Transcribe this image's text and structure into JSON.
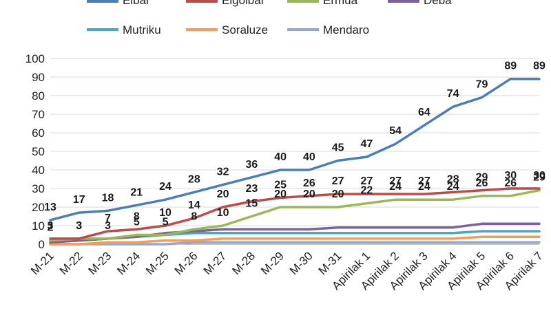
{
  "chart_data": {
    "type": "line",
    "title": "",
    "xlabel": "",
    "ylabel": "",
    "ylim": [
      0,
      100
    ],
    "yticks": [
      0,
      10,
      20,
      30,
      40,
      50,
      60,
      70,
      80,
      90,
      100
    ],
    "grid": true,
    "legend_position": "top",
    "categories": [
      "M-21",
      "M-22",
      "M-23",
      "M-24",
      "M-25",
      "M-26",
      "M-27",
      "M-28",
      "M-29",
      "M-30",
      "M-31",
      "Apirilak 1",
      "Apirilak 2",
      "Apirilak 3",
      "Apirilak 4",
      "Apirilak 5",
      "Apirilak 6",
      "Apirilak 7"
    ],
    "series": [
      {
        "name": "Eibar",
        "color": "#4a7ebb",
        "values": [
          13,
          17,
          18,
          21,
          24,
          28,
          32,
          36,
          40,
          40,
          45,
          47,
          54,
          64,
          74,
          79,
          89,
          89
        ],
        "labels": [
          "13",
          "17",
          "18",
          "21",
          "24",
          "28",
          "32",
          "36",
          "40",
          "40",
          "45",
          "47",
          "54",
          "64",
          "74",
          "79",
          "89",
          "89"
        ]
      },
      {
        "name": "Elgoibar",
        "color": "#be4b48",
        "values": [
          3,
          3,
          7,
          8,
          10,
          14,
          20,
          23,
          25,
          26,
          27,
          27,
          27,
          27,
          28,
          29,
          30,
          30
        ],
        "labels": [
          "3",
          "3",
          "7",
          "8",
          "10",
          "14",
          "20",
          "23",
          "25",
          "26",
          "27",
          "27",
          "27",
          "27",
          "28",
          "29",
          "30",
          "30"
        ]
      },
      {
        "name": "Ermua",
        "color": "#98b954",
        "values": [
          2,
          3,
          3,
          5,
          5,
          8,
          10,
          15,
          20,
          20,
          20,
          22,
          24,
          24,
          24,
          26,
          26,
          29
        ],
        "labels": [
          "2",
          "3",
          "3",
          "5",
          "5",
          "8",
          "10",
          "15",
          "20",
          "20",
          "20",
          "22",
          "24",
          "24",
          "24",
          "26",
          "26",
          "29"
        ]
      },
      {
        "name": "Deba",
        "color": "#7d60a0",
        "values": [
          1,
          2,
          3,
          4,
          6,
          7,
          8,
          8,
          8,
          8,
          9,
          9,
          9,
          9,
          9,
          11,
          11,
          11
        ]
      },
      {
        "name": "Mutriku",
        "color": "#46aac5",
        "values": [
          1,
          2,
          3,
          4,
          5,
          6,
          6,
          6,
          6,
          6,
          6,
          6,
          6,
          6,
          6,
          7,
          7,
          7
        ]
      },
      {
        "name": "Soraluze",
        "color": "#f59d56",
        "values": [
          0,
          0,
          1,
          1,
          2,
          2,
          3,
          3,
          3,
          3,
          3,
          3,
          3,
          3,
          3,
          4,
          4,
          4
        ]
      },
      {
        "name": "Mendaro",
        "color": "#93a9cf",
        "values": [
          0,
          0,
          0,
          0,
          0,
          1,
          1,
          1,
          1,
          1,
          1,
          1,
          1,
          1,
          1,
          1,
          1,
          1
        ]
      }
    ]
  }
}
